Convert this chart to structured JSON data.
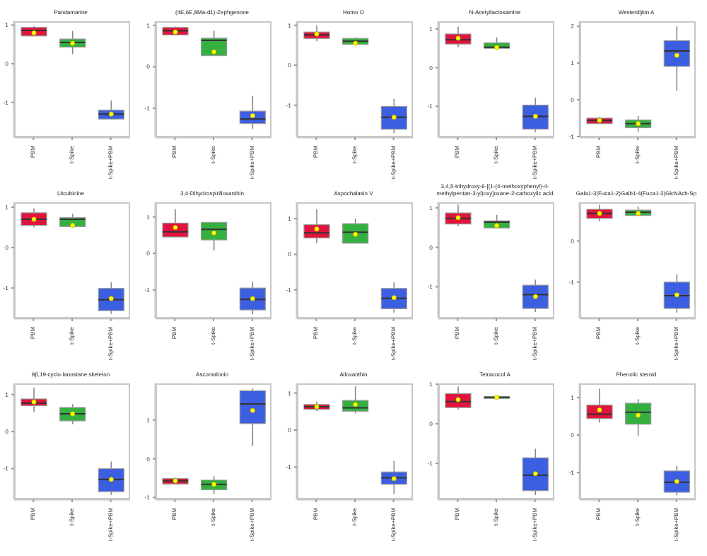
{
  "chart_data": [
    {
      "type": "box",
      "title": "Pandamarine",
      "categories": [
        "PBM",
        "t-Spike",
        "t-Spike+PBM"
      ],
      "colors": [
        "#e0143c",
        "#34b040",
        "#3c5ee0"
      ],
      "ylim": [
        -1.9,
        1.1
      ],
      "yticks": [
        -1,
        0,
        1
      ],
      "boxes": [
        {
          "low": 0.72,
          "q1": 0.72,
          "median": 0.86,
          "q3": 0.94,
          "high": 0.97,
          "mean": 0.8
        },
        {
          "low": 0.25,
          "q1": 0.43,
          "median": 0.55,
          "q3": 0.64,
          "high": 0.85,
          "mean": 0.53
        },
        {
          "low": -1.43,
          "q1": -1.43,
          "median": -1.3,
          "q3": -1.2,
          "high": -0.95,
          "mean": -1.3
        }
      ]
    },
    {
      "type": "box",
      "title": "(4E,6E,8Ma-d1)-Zephgenone",
      "categories": [
        "PBM",
        "t-Spike",
        "t-Spike+PBM"
      ],
      "colors": [
        "#e0143c",
        "#34b040",
        "#3c5ee0"
      ],
      "ylim": [
        -1.7,
        1.1
      ],
      "yticks": [
        -1,
        0,
        1
      ],
      "boxes": [
        {
          "low": 0.77,
          "q1": 0.77,
          "median": 0.87,
          "q3": 0.95,
          "high": 0.97,
          "mean": 0.84
        },
        {
          "low": 0.27,
          "q1": 0.27,
          "median": 0.64,
          "q3": 0.69,
          "high": 0.87,
          "mean": 0.36
        },
        {
          "low": -1.5,
          "q1": -1.37,
          "median": -1.26,
          "q3": -1.07,
          "high": -0.7,
          "mean": -1.18
        }
      ]
    },
    {
      "type": "box",
      "title": "Homo O",
      "categories": [
        "PBM",
        "t-Spike",
        "t-Spike+PBM"
      ],
      "colors": [
        "#e0143c",
        "#34b040",
        "#3c5ee0"
      ],
      "ylim": [
        -1.8,
        1.1
      ],
      "yticks": [
        -1,
        0,
        1
      ],
      "boxes": [
        {
          "low": 0.6,
          "q1": 0.67,
          "median": 0.76,
          "q3": 0.83,
          "high": 1.0,
          "mean": 0.78
        },
        {
          "low": 0.52,
          "q1": 0.52,
          "median": 0.6,
          "q3": 0.67,
          "high": 0.7,
          "mean": 0.55
        },
        {
          "low": -1.7,
          "q1": -1.6,
          "median": -1.3,
          "q3": -1.03,
          "high": -0.84,
          "mean": -1.3
        }
      ]
    },
    {
      "type": "box",
      "title": "N-Acetyllactosamine",
      "categories": [
        "PBM",
        "t-Spike",
        "t-Spike+PBM"
      ],
      "colors": [
        "#e0143c",
        "#34b040",
        "#3c5ee0"
      ],
      "ylim": [
        -1.8,
        1.2
      ],
      "yticks": [
        -1,
        0,
        1
      ],
      "boxes": [
        {
          "low": 0.53,
          "q1": 0.61,
          "median": 0.72,
          "q3": 0.87,
          "high": 1.06,
          "mean": 0.76
        },
        {
          "low": 0.5,
          "q1": 0.5,
          "median": 0.53,
          "q3": 0.64,
          "high": 0.78,
          "mean": 0.52
        },
        {
          "low": -1.67,
          "q1": -1.59,
          "median": -1.26,
          "q3": -0.97,
          "high": -0.78,
          "mean": -1.26
        }
      ]
    },
    {
      "type": "box",
      "title": "Westerdijkin A",
      "categories": [
        "PBM",
        "t-Spike",
        "t-Spike+PBM"
      ],
      "colors": [
        "#e0143c",
        "#34b040",
        "#3c5ee0"
      ],
      "ylim": [
        -1.02,
        2.14
      ],
      "yticks": [
        -1,
        0,
        1,
        2
      ],
      "boxes": [
        {
          "low": -0.65,
          "q1": -0.65,
          "median": -0.56,
          "q3": -0.5,
          "high": -0.47,
          "mean": -0.56
        },
        {
          "low": -0.88,
          "q1": -0.76,
          "median": -0.65,
          "q3": -0.55,
          "high": -0.44,
          "mean": -0.65
        },
        {
          "low": 0.24,
          "q1": 0.91,
          "median": 1.33,
          "q3": 1.61,
          "high": 2.0,
          "mean": 1.21
        }
      ]
    },
    {
      "type": "box",
      "title": "Litcubinine",
      "categories": [
        "PBM",
        "t-Spike",
        "t-Spike+PBM"
      ],
      "colors": [
        "#e0143c",
        "#34b040",
        "#3c5ee0"
      ],
      "ylim": [
        -1.75,
        1.12
      ],
      "yticks": [
        -1,
        0,
        1
      ],
      "boxes": [
        {
          "low": 0.5,
          "q1": 0.55,
          "median": 0.7,
          "q3": 0.86,
          "high": 0.97,
          "mean": 0.7
        },
        {
          "low": 0.52,
          "q1": 0.52,
          "median": 0.7,
          "q3": 0.74,
          "high": 0.84,
          "mean": 0.55
        },
        {
          "low": -1.64,
          "q1": -1.56,
          "median": -1.29,
          "q3": -1.01,
          "high": -0.86,
          "mean": -1.26
        }
      ]
    },
    {
      "type": "box",
      "title": "3,4-Dihydrospirilloxanthin",
      "categories": [
        "PBM",
        "t-Spike",
        "t-Spike+PBM"
      ],
      "colors": [
        "#e0143c",
        "#34b040",
        "#3c5ee0"
      ],
      "ylim": [
        -1.78,
        1.4
      ],
      "yticks": [
        -1,
        0,
        1
      ],
      "boxes": [
        {
          "low": 0.45,
          "q1": 0.45,
          "median": 0.59,
          "q3": 0.83,
          "high": 1.21,
          "mean": 0.71
        },
        {
          "low": 0.08,
          "q1": 0.37,
          "median": 0.66,
          "q3": 0.85,
          "high": 0.85,
          "mean": 0.56
        },
        {
          "low": -1.67,
          "q1": -1.55,
          "median": -1.26,
          "q3": -0.95,
          "high": -0.78,
          "mean": -1.24
        }
      ]
    },
    {
      "type": "box",
      "title": "Aspochalasin V",
      "categories": [
        "PBM",
        "t-Spike",
        "t-Spike+PBM"
      ],
      "colors": [
        "#e0143c",
        "#34b040",
        "#3c5ee0"
      ],
      "ylim": [
        -1.8,
        1.46
      ],
      "yticks": [
        -1,
        0,
        1
      ],
      "boxes": [
        {
          "low": 0.31,
          "q1": 0.46,
          "median": 0.6,
          "q3": 0.83,
          "high": 1.26,
          "mean": 0.71
        },
        {
          "low": 0.31,
          "q1": 0.31,
          "median": 0.62,
          "q3": 0.86,
          "high": 1.0,
          "mean": 0.56
        },
        {
          "low": -1.64,
          "q1": -1.53,
          "median": -1.24,
          "q3": -0.96,
          "high": -0.79,
          "mean": -1.22
        }
      ]
    },
    {
      "type": "box",
      "title": "3,4,5-trihydroxy-6-[(1-(4-methoxyphenyl)-4-methylpentan-3-yl)oxy]oxane-2-carboxylic acid",
      "categories": [
        "PBM",
        "t-Spike",
        "t-Spike+PBM"
      ],
      "colors": [
        "#e0143c",
        "#34b040",
        "#3c5ee0"
      ],
      "ylim": [
        -1.8,
        1.14
      ],
      "yticks": [
        -1,
        0,
        1
      ],
      "boxes": [
        {
          "low": 0.53,
          "q1": 0.59,
          "median": 0.73,
          "q3": 0.87,
          "high": 1.08,
          "mean": 0.75
        },
        {
          "low": 0.49,
          "q1": 0.49,
          "median": 0.64,
          "q3": 0.67,
          "high": 0.82,
          "mean": 0.55
        },
        {
          "low": -1.64,
          "q1": -1.55,
          "median": -1.2,
          "q3": -0.96,
          "high": -0.82,
          "mean": -1.25
        }
      ]
    },
    {
      "type": "box",
      "title": "Gala1-3(Fuca1-2)Galb1-4(Fuca1-3)GlcNAcb-Sp",
      "categories": [
        "PBM",
        "t-Spike",
        "t-Spike+PBM"
      ],
      "colors": [
        "#e0143c",
        "#34b040",
        "#3c5ee0"
      ],
      "ylim": [
        -1.88,
        0.94
      ],
      "yticks": [
        -1,
        0
      ],
      "boxes": [
        {
          "low": 0.47,
          "q1": 0.55,
          "median": 0.67,
          "q3": 0.77,
          "high": 0.88,
          "mean": 0.67
        },
        {
          "low": 0.62,
          "q1": 0.62,
          "median": 0.7,
          "q3": 0.75,
          "high": 0.84,
          "mean": 0.67
        },
        {
          "low": -1.74,
          "q1": -1.64,
          "median": -1.33,
          "q3": -1.0,
          "high": -0.81,
          "mean": -1.31
        }
      ]
    },
    {
      "type": "box",
      "title": "9β,19-cyclo-lanostane skeleton",
      "categories": [
        "PBM",
        "t-Spike",
        "t-Spike+PBM"
      ],
      "colors": [
        "#e0143c",
        "#34b040",
        "#3c5ee0"
      ],
      "ylim": [
        -1.83,
        1.3
      ],
      "yticks": [
        -1,
        0,
        1
      ],
      "boxes": [
        {
          "low": 0.52,
          "q1": 0.7,
          "median": 0.77,
          "q3": 0.88,
          "high": 1.19,
          "mean": 0.8
        },
        {
          "low": 0.2,
          "q1": 0.29,
          "median": 0.48,
          "q3": 0.65,
          "high": 0.74,
          "mean": 0.48
        },
        {
          "low": -1.71,
          "q1": -1.62,
          "median": -1.29,
          "q3": -1.0,
          "high": -0.81,
          "mean": -1.29
        }
      ]
    },
    {
      "type": "box",
      "title": "Ascomalonin",
      "categories": [
        "PBM",
        "t-Spike",
        "t-Spike+PBM"
      ],
      "colors": [
        "#e0143c",
        "#34b040",
        "#3c5ee0"
      ],
      "ylim": [
        -1.05,
        1.95
      ],
      "yticks": [
        -1,
        0,
        1
      ],
      "boxes": [
        {
          "low": -0.65,
          "q1": -0.65,
          "median": -0.57,
          "q3": -0.51,
          "high": -0.49,
          "mean": -0.57
        },
        {
          "low": -0.91,
          "q1": -0.8,
          "median": -0.66,
          "q3": -0.55,
          "high": -0.45,
          "mean": -0.66
        },
        {
          "low": 0.34,
          "q1": 0.91,
          "median": 1.42,
          "q3": 1.76,
          "high": 1.82,
          "mean": 1.25
        }
      ]
    },
    {
      "type": "box",
      "title": "Alloxanthin",
      "categories": [
        "PBM",
        "t-Spike",
        "t-Spike+PBM"
      ],
      "colors": [
        "#e0143c",
        "#34b040",
        "#3c5ee0"
      ],
      "ylim": [
        -1.87,
        1.26
      ],
      "yticks": [
        -1,
        0,
        1
      ],
      "boxes": [
        {
          "low": 0.51,
          "q1": 0.56,
          "median": 0.63,
          "q3": 0.69,
          "high": 0.77,
          "mean": 0.63
        },
        {
          "low": 0.45,
          "q1": 0.51,
          "median": 0.6,
          "q3": 0.8,
          "high": 1.18,
          "mean": 0.69
        },
        {
          "low": -1.73,
          "q1": -1.46,
          "median": -1.29,
          "q3": -1.13,
          "high": -0.83,
          "mean": -1.31
        }
      ]
    },
    {
      "type": "box",
      "title": "Tetracocol A",
      "categories": [
        "PBM",
        "t-Spike",
        "t-Spike+PBM"
      ],
      "colors": [
        "#e0143c",
        "#34b040",
        "#3c5ee0"
      ],
      "ylim": [
        -1.91,
        1.02
      ],
      "yticks": [
        -1,
        0,
        1
      ],
      "boxes": [
        {
          "low": 0.36,
          "q1": 0.41,
          "median": 0.56,
          "q3": 0.76,
          "high": 0.94,
          "mean": 0.61
        },
        {
          "low": 0.63,
          "q1": 0.64,
          "median": 0.67,
          "q3": 0.68,
          "high": 0.69,
          "mean": 0.67
        },
        {
          "low": -1.8,
          "q1": -1.69,
          "median": -1.3,
          "q3": -0.86,
          "high": -0.63,
          "mean": -1.26
        }
      ]
    },
    {
      "type": "box",
      "title": "Phenolic steroid",
      "categories": [
        "PBM",
        "t-Spike",
        "t-Spike+PBM"
      ],
      "colors": [
        "#e0143c",
        "#34b040",
        "#3c5ee0"
      ],
      "ylim": [
        -1.72,
        1.38
      ],
      "yticks": [
        -1,
        0,
        1
      ],
      "boxes": [
        {
          "low": 0.33,
          "q1": 0.44,
          "median": 0.56,
          "q3": 0.8,
          "high": 1.24,
          "mean": 0.67
        },
        {
          "low": -0.02,
          "q1": 0.29,
          "median": 0.61,
          "q3": 0.85,
          "high": 0.96,
          "mean": 0.53
        },
        {
          "low": -1.61,
          "q1": -1.53,
          "median": -1.26,
          "q3": -0.96,
          "high": -0.82,
          "mean": -1.24
        }
      ]
    }
  ]
}
